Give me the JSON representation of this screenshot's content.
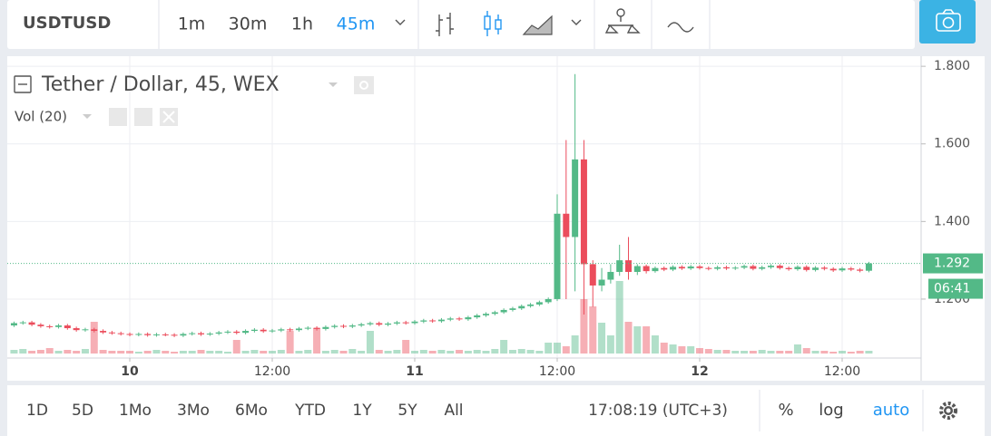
{
  "toolbar": {
    "symbol": "USDTUSD",
    "intervals": [
      "1m",
      "30m",
      "1h",
      "45m"
    ],
    "active_interval": 3
  },
  "chart_data": {
    "type": "candlestick",
    "title": "Tether / Dollar, 45, WEX",
    "indicator": "Vol (20)",
    "x": [
      -9.75,
      -9,
      -8.25,
      -7.5,
      -6.75,
      -6,
      -5.25,
      -4.5,
      -3.75,
      -3,
      -2.25,
      -1.5,
      -0.75,
      0,
      0.75,
      1.5,
      2.25,
      3,
      3.75,
      4.5,
      5.25,
      6,
      6.75,
      7.5,
      8.25,
      9,
      9.75,
      10.5,
      11.25,
      12,
      12.75,
      13.5,
      14.25,
      15,
      15.75,
      16.5,
      17.25,
      18,
      18.75,
      19.5,
      20.25,
      21,
      21.75,
      22.5,
      23.25,
      24,
      24.75,
      25.5,
      26.25,
      27,
      27.75,
      28.5,
      29.25,
      30,
      30.75,
      31.5,
      32.25,
      33,
      33.75,
      34.5,
      35.25,
      36,
      36.75,
      37.5,
      38.25,
      39,
      39.75,
      40.5,
      41.25,
      42,
      42.75,
      43.5,
      44.25,
      45,
      45.75,
      46.5,
      47.25,
      48,
      48.75,
      49.5,
      50.25,
      51,
      51.75,
      52.5,
      53.25,
      54,
      54.75,
      55.5,
      56.25,
      57,
      57.75,
      58.5,
      59.25,
      60,
      60.75,
      61.5,
      62.25
    ],
    "open": [
      1.132,
      1.138,
      1.14,
      1.134,
      1.13,
      1.128,
      1.132,
      1.125,
      1.12,
      1.122,
      1.118,
      1.114,
      1.112,
      1.11,
      1.108,
      1.11,
      1.107,
      1.109,
      1.108,
      1.106,
      1.11,
      1.112,
      1.109,
      1.111,
      1.114,
      1.116,
      1.113,
      1.118,
      1.121,
      1.117,
      1.119,
      1.122,
      1.12,
      1.124,
      1.126,
      1.123,
      1.128,
      1.131,
      1.129,
      1.132,
      1.135,
      1.138,
      1.134,
      1.137,
      1.14,
      1.138,
      1.142,
      1.145,
      1.143,
      1.147,
      1.15,
      1.148,
      1.153,
      1.158,
      1.162,
      1.166,
      1.172,
      1.176,
      1.182,
      1.186,
      1.192,
      1.2,
      1.42,
      1.36,
      1.56,
      1.29,
      1.235,
      1.25,
      1.27,
      1.3,
      1.27,
      1.285,
      1.272,
      1.28,
      1.276,
      1.283,
      1.279,
      1.284,
      1.28,
      1.278,
      1.282,
      1.279,
      1.281,
      1.285,
      1.278,
      1.282,
      1.286,
      1.28,
      1.277,
      1.283,
      1.275,
      1.281,
      1.278,
      1.274,
      1.279,
      1.276,
      1.273
    ],
    "high": [
      1.142,
      1.144,
      1.144,
      1.138,
      1.134,
      1.136,
      1.136,
      1.129,
      1.126,
      1.126,
      1.122,
      1.118,
      1.116,
      1.114,
      1.114,
      1.114,
      1.113,
      1.113,
      1.112,
      1.114,
      1.116,
      1.116,
      1.115,
      1.118,
      1.12,
      1.12,
      1.122,
      1.125,
      1.125,
      1.123,
      1.126,
      1.126,
      1.128,
      1.13,
      1.13,
      1.132,
      1.135,
      1.135,
      1.136,
      1.139,
      1.142,
      1.142,
      1.141,
      1.144,
      1.144,
      1.146,
      1.149,
      1.149,
      1.151,
      1.154,
      1.154,
      1.157,
      1.162,
      1.166,
      1.17,
      1.176,
      1.18,
      1.186,
      1.19,
      1.196,
      1.204,
      1.47,
      1.61,
      1.78,
      1.61,
      1.3,
      1.28,
      1.29,
      1.34,
      1.36,
      1.29,
      1.289,
      1.284,
      1.284,
      1.287,
      1.287,
      1.288,
      1.288,
      1.284,
      1.286,
      1.286,
      1.285,
      1.289,
      1.289,
      1.286,
      1.29,
      1.29,
      1.284,
      1.287,
      1.287,
      1.285,
      1.285,
      1.282,
      1.283,
      1.283,
      1.28,
      1.296
    ],
    "low": [
      1.128,
      1.134,
      1.13,
      1.126,
      1.124,
      1.124,
      1.121,
      1.116,
      1.116,
      1.114,
      1.11,
      1.108,
      1.106,
      1.104,
      1.104,
      1.103,
      1.103,
      1.104,
      1.102,
      1.102,
      1.106,
      1.105,
      1.105,
      1.107,
      1.11,
      1.109,
      1.109,
      1.114,
      1.113,
      1.113,
      1.115,
      1.116,
      1.116,
      1.12,
      1.119,
      1.119,
      1.124,
      1.125,
      1.125,
      1.128,
      1.131,
      1.13,
      1.13,
      1.133,
      1.134,
      1.134,
      1.138,
      1.139,
      1.139,
      1.143,
      1.144,
      1.144,
      1.149,
      1.154,
      1.158,
      1.162,
      1.168,
      1.172,
      1.178,
      1.182,
      1.188,
      1.195,
      1.2,
      1.22,
      1.16,
      1.18,
      1.22,
      1.24,
      1.26,
      1.25,
      1.262,
      1.266,
      1.268,
      1.272,
      1.272,
      1.275,
      1.275,
      1.276,
      1.274,
      1.274,
      1.275,
      1.275,
      1.277,
      1.274,
      1.274,
      1.278,
      1.276,
      1.273,
      1.273,
      1.271,
      1.271,
      1.274,
      1.27,
      1.27,
      1.272,
      1.269,
      1.269
    ],
    "close": [
      1.138,
      1.14,
      1.134,
      1.13,
      1.128,
      1.132,
      1.125,
      1.12,
      1.122,
      1.118,
      1.114,
      1.112,
      1.11,
      1.108,
      1.11,
      1.107,
      1.109,
      1.108,
      1.106,
      1.11,
      1.112,
      1.109,
      1.111,
      1.114,
      1.116,
      1.113,
      1.118,
      1.121,
      1.117,
      1.119,
      1.122,
      1.12,
      1.124,
      1.126,
      1.123,
      1.128,
      1.131,
      1.129,
      1.132,
      1.135,
      1.138,
      1.134,
      1.137,
      1.14,
      1.138,
      1.142,
      1.145,
      1.143,
      1.147,
      1.15,
      1.148,
      1.153,
      1.158,
      1.162,
      1.166,
      1.172,
      1.176,
      1.182,
      1.186,
      1.192,
      1.2,
      1.42,
      1.36,
      1.56,
      1.29,
      1.235,
      1.25,
      1.27,
      1.3,
      1.27,
      1.285,
      1.272,
      1.28,
      1.276,
      1.283,
      1.279,
      1.284,
      1.28,
      1.278,
      1.282,
      1.279,
      1.281,
      1.285,
      1.278,
      1.282,
      1.286,
      1.28,
      1.277,
      1.283,
      1.275,
      1.281,
      1.278,
      1.274,
      1.279,
      1.276,
      1.273,
      1.292
    ],
    "volume": [
      4,
      5,
      3,
      4,
      6,
      3,
      4,
      3,
      5,
      35,
      4,
      3,
      3,
      3,
      2,
      3,
      4,
      3,
      2,
      3,
      3,
      4,
      3,
      3,
      2,
      15,
      3,
      4,
      3,
      3,
      4,
      25,
      3,
      4,
      28,
      3,
      4,
      3,
      5,
      3,
      25,
      4,
      3,
      4,
      15,
      3,
      4,
      3,
      4,
      3,
      4,
      3,
      4,
      3,
      5,
      15,
      4,
      5,
      4,
      3,
      12,
      12,
      8,
      20,
      60,
      52,
      34,
      20,
      80,
      35,
      30,
      30,
      20,
      12,
      10,
      8,
      8,
      6,
      5,
      4,
      4,
      3,
      3,
      3,
      4,
      3,
      3,
      3,
      10,
      6,
      3,
      3,
      2,
      3,
      2,
      3,
      3
    ],
    "xlim": [
      -10.32,
      66.65
    ],
    "xticks": [
      {
        "value": 0,
        "label": "10"
      },
      {
        "value": 12,
        "label": "12:00"
      },
      {
        "value": 24,
        "label": "11"
      },
      {
        "value": 36,
        "label": "12:00"
      },
      {
        "value": 48,
        "label": "12"
      },
      {
        "value": 60,
        "label": "12:00"
      }
    ],
    "ylim": [
      1.048,
      1.826
    ],
    "yticks": [
      {
        "value": 1.2,
        "label": "1.200"
      },
      {
        "value": 1.4,
        "label": "1.400"
      },
      {
        "value": 1.6,
        "label": "1.600"
      },
      {
        "value": 1.8,
        "label": "1.800"
      }
    ],
    "grid": true,
    "up_color": "#53b987",
    "down_color": "#eb4d5c",
    "countdown": "06:41"
  },
  "bottom_bar": {
    "ranges": [
      "1D",
      "5D",
      "1Mo",
      "3Mo",
      "6Mo",
      "YTD",
      "1Y",
      "5Y",
      "All"
    ],
    "clock": "17:08:19 (UTC+3)",
    "options": [
      "%",
      "log",
      "auto"
    ],
    "active_option": 2
  }
}
